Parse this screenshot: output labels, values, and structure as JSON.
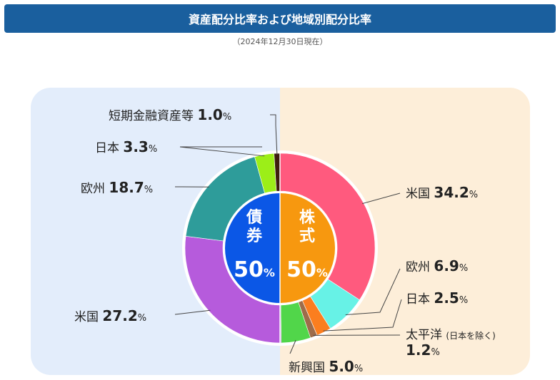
{
  "header": {
    "title": "資産配分比率および地域別配分比率",
    "date_note": "（2024年12月30日現在）"
  },
  "chart_data": {
    "type": "pie",
    "title": "資産配分比率および地域別配分比率",
    "inner_ring": [
      {
        "label": "債券",
        "value": "50",
        "unit": "%",
        "color": "#0b57e6"
      },
      {
        "label": "株式",
        "value": "50",
        "unit": "%",
        "color": "#f7980f"
      }
    ],
    "outer_ring": [
      {
        "group": "株式",
        "label": "米国",
        "value": 34.2,
        "color": "#ff5a7e"
      },
      {
        "group": "株式",
        "label": "欧州",
        "value": 6.9,
        "color": "#67f2e6"
      },
      {
        "group": "株式",
        "label": "日本",
        "value": 2.5,
        "color": "#fb7e1f"
      },
      {
        "group": "株式",
        "label": "太平洋",
        "label_note": "(日本を除く)",
        "value": 1.2,
        "color": "#9e6c4a"
      },
      {
        "group": "株式",
        "label": "新興国",
        "value": 5.0,
        "color": "#51d64a"
      },
      {
        "group": "債券",
        "label": "米国",
        "value": 27.2,
        "color": "#b65bdc"
      },
      {
        "group": "債券",
        "label": "欧州",
        "value": 18.7,
        "color": "#2e9c9a"
      },
      {
        "group": "債券",
        "label": "日本",
        "value": 3.3,
        "color": "#9cee18"
      },
      {
        "group": "債券",
        "label": "短期金融資産等",
        "value": 1.0,
        "color": "#3d1d0d"
      }
    ],
    "unit": "%"
  }
}
